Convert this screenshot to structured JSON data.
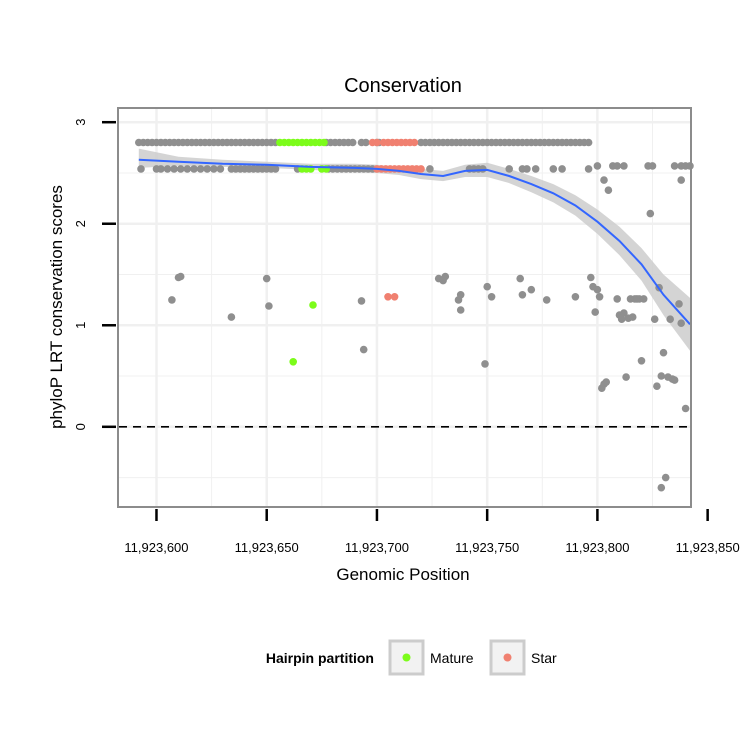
{
  "chart_data": {
    "type": "scatter",
    "title": "Conservation",
    "xlabel": "Genomic Position",
    "ylabel": "phyloP LRT conservation scores",
    "xlim": [
      11923583,
      11923842
    ],
    "ylim": [
      -0.78,
      3.13
    ],
    "x_ticks": [
      11923600,
      11923650,
      11923700,
      11923750,
      11923800,
      11923850
    ],
    "x_tick_labels": [
      "11,923,600",
      "11,923,650",
      "11,923,700",
      "11,923,750",
      "11,923,800",
      "11,923,850"
    ],
    "y_ticks": [
      0,
      1,
      2,
      3
    ],
    "y_tick_labels": [
      "0",
      "1",
      "2",
      "3"
    ],
    "reference_line": {
      "y": 0,
      "style": "dashed"
    },
    "legend": {
      "title": "Hairpin partition",
      "placement": "bottom",
      "entries": [
        {
          "label": "Mature",
          "color": "#7cfc1a"
        },
        {
          "label": "Star",
          "color": "#f08070"
        }
      ]
    },
    "colors": {
      "other": "#8f8f8f",
      "mature": "#7cfc1a",
      "star": "#f08070",
      "smooth": "#3366ff",
      "band": "#cccccc",
      "panel_border": "#8c8c8c",
      "grid": "#f0f0f0"
    },
    "series": [
      {
        "name": "Other",
        "color": "#8f8f8f",
        "points": [
          [
            11923592,
            2.8
          ],
          [
            11923594,
            2.8
          ],
          [
            11923596,
            2.8
          ],
          [
            11923598,
            2.8
          ],
          [
            11923600,
            2.8
          ],
          [
            11923602,
            2.8
          ],
          [
            11923604,
            2.8
          ],
          [
            11923606,
            2.8
          ],
          [
            11923608,
            2.8
          ],
          [
            11923610,
            2.8
          ],
          [
            11923612,
            2.8
          ],
          [
            11923614,
            2.8
          ],
          [
            11923616,
            2.8
          ],
          [
            11923618,
            2.8
          ],
          [
            11923620,
            2.8
          ],
          [
            11923622,
            2.8
          ],
          [
            11923624,
            2.8
          ],
          [
            11923626,
            2.8
          ],
          [
            11923628,
            2.8
          ],
          [
            11923630,
            2.8
          ],
          [
            11923632,
            2.8
          ],
          [
            11923634,
            2.8
          ],
          [
            11923636,
            2.8
          ],
          [
            11923638,
            2.8
          ],
          [
            11923640,
            2.8
          ],
          [
            11923642,
            2.8
          ],
          [
            11923644,
            2.8
          ],
          [
            11923646,
            2.8
          ],
          [
            11923648,
            2.8
          ],
          [
            11923650,
            2.8
          ],
          [
            11923652,
            2.8
          ],
          [
            11923654,
            2.8
          ],
          [
            11923677,
            2.8
          ],
          [
            11923679,
            2.8
          ],
          [
            11923681,
            2.8
          ],
          [
            11923683,
            2.8
          ],
          [
            11923685,
            2.8
          ],
          [
            11923687,
            2.8
          ],
          [
            11923689,
            2.8
          ],
          [
            11923693,
            2.8
          ],
          [
            11923695,
            2.8
          ],
          [
            11923700,
            2.8
          ],
          [
            11923701,
            2.8
          ],
          [
            11923720,
            2.8
          ],
          [
            11923722,
            2.8
          ],
          [
            11923724,
            2.8
          ],
          [
            11923726,
            2.8
          ],
          [
            11923728,
            2.8
          ],
          [
            11923730,
            2.8
          ],
          [
            11923732,
            2.8
          ],
          [
            11923734,
            2.8
          ],
          [
            11923736,
            2.8
          ],
          [
            11923738,
            2.8
          ],
          [
            11923740,
            2.8
          ],
          [
            11923742,
            2.8
          ],
          [
            11923744,
            2.8
          ],
          [
            11923746,
            2.8
          ],
          [
            11923748,
            2.8
          ],
          [
            11923750,
            2.8
          ],
          [
            11923752,
            2.8
          ],
          [
            11923754,
            2.8
          ],
          [
            11923756,
            2.8
          ],
          [
            11923758,
            2.8
          ],
          [
            11923760,
            2.8
          ],
          [
            11923762,
            2.8
          ],
          [
            11923764,
            2.8
          ],
          [
            11923766,
            2.8
          ],
          [
            11923768,
            2.8
          ],
          [
            11923770,
            2.8
          ],
          [
            11923772,
            2.8
          ],
          [
            11923774,
            2.8
          ],
          [
            11923776,
            2.8
          ],
          [
            11923778,
            2.8
          ],
          [
            11923780,
            2.8
          ],
          [
            11923782,
            2.8
          ],
          [
            11923784,
            2.8
          ],
          [
            11923786,
            2.8
          ],
          [
            11923788,
            2.8
          ],
          [
            11923790,
            2.8
          ],
          [
            11923792,
            2.8
          ],
          [
            11923794,
            2.8
          ],
          [
            11923796,
            2.8
          ],
          [
            11923593,
            2.54
          ],
          [
            11923600,
            2.54
          ],
          [
            11923602,
            2.54
          ],
          [
            11923605,
            2.54
          ],
          [
            11923608,
            2.54
          ],
          [
            11923611,
            2.54
          ],
          [
            11923614,
            2.54
          ],
          [
            11923617,
            2.54
          ],
          [
            11923620,
            2.54
          ],
          [
            11923623,
            2.54
          ],
          [
            11923626,
            2.54
          ],
          [
            11923629,
            2.54
          ],
          [
            11923634,
            2.54
          ],
          [
            11923636,
            2.54
          ],
          [
            11923638,
            2.54
          ],
          [
            11923640,
            2.54
          ],
          [
            11923642,
            2.54
          ],
          [
            11923644,
            2.54
          ],
          [
            11923646,
            2.54
          ],
          [
            11923648,
            2.54
          ],
          [
            11923650,
            2.54
          ],
          [
            11923652,
            2.54
          ],
          [
            11923654,
            2.54
          ],
          [
            11923664,
            2.54
          ],
          [
            11923678,
            2.54
          ],
          [
            11923680,
            2.54
          ],
          [
            11923682,
            2.54
          ],
          [
            11923684,
            2.54
          ],
          [
            11923686,
            2.54
          ],
          [
            11923688,
            2.54
          ],
          [
            11923690,
            2.54
          ],
          [
            11923692,
            2.54
          ],
          [
            11923694,
            2.54
          ],
          [
            11923696,
            2.54
          ],
          [
            11923698,
            2.54
          ],
          [
            11923724,
            2.54
          ],
          [
            11923742,
            2.54
          ],
          [
            11923744,
            2.54
          ],
          [
            11923746,
            2.54
          ],
          [
            11923748,
            2.54
          ],
          [
            11923760,
            2.54
          ],
          [
            11923766,
            2.54
          ],
          [
            11923768,
            2.54
          ],
          [
            11923772,
            2.54
          ],
          [
            11923780,
            2.54
          ],
          [
            11923784,
            2.54
          ],
          [
            11923796,
            2.54
          ],
          [
            11923800,
            2.57
          ],
          [
            11923807,
            2.57
          ],
          [
            11923809,
            2.57
          ],
          [
            11923812,
            2.57
          ],
          [
            11923823,
            2.57
          ],
          [
            11923825,
            2.57
          ],
          [
            11923835,
            2.57
          ],
          [
            11923838,
            2.57
          ],
          [
            11923840,
            2.57
          ],
          [
            11923842,
            2.57
          ],
          [
            11923803,
            2.43
          ],
          [
            11923805,
            2.33
          ],
          [
            11923838,
            2.43
          ],
          [
            11923824,
            2.1
          ],
          [
            11923607,
            1.25
          ],
          [
            11923610,
            1.47
          ],
          [
            11923611,
            1.48
          ],
          [
            11923634,
            1.08
          ],
          [
            11923650,
            1.46
          ],
          [
            11923651,
            1.19
          ],
          [
            11923693,
            1.24
          ],
          [
            11923694,
            0.76
          ],
          [
            11923728,
            1.46
          ],
          [
            11923730,
            1.44
          ],
          [
            11923731,
            1.48
          ],
          [
            11923737,
            1.25
          ],
          [
            11923738,
            1.3
          ],
          [
            11923738,
            1.15
          ],
          [
            11923749,
            0.62
          ],
          [
            11923750,
            1.38
          ],
          [
            11923752,
            1.28
          ],
          [
            11923765,
            1.46
          ],
          [
            11923766,
            1.3
          ],
          [
            11923770,
            1.35
          ],
          [
            11923777,
            1.25
          ],
          [
            11923790,
            1.28
          ],
          [
            11923797,
            1.47
          ],
          [
            11923798,
            1.38
          ],
          [
            11923799,
            1.13
          ],
          [
            11923800,
            1.35
          ],
          [
            11923801,
            1.28
          ],
          [
            11923802,
            0.38
          ],
          [
            11923803,
            0.42
          ],
          [
            11923804,
            0.44
          ],
          [
            11923809,
            1.26
          ],
          [
            11923810,
            1.1
          ],
          [
            11923811,
            1.06
          ],
          [
            11923812,
            1.12
          ],
          [
            11923813,
            0.49
          ],
          [
            11923814,
            1.07
          ],
          [
            11923815,
            1.26
          ],
          [
            11923816,
            1.08
          ],
          [
            11923817,
            1.26
          ],
          [
            11923818,
            1.26
          ],
          [
            11923819,
            1.26
          ],
          [
            11923820,
            0.65
          ],
          [
            11923821,
            1.26
          ],
          [
            11923826,
            1.06
          ],
          [
            11923827,
            0.4
          ],
          [
            11923828,
            1.37
          ],
          [
            11923829,
            0.5
          ],
          [
            11923829,
            -0.6
          ],
          [
            11923830,
            0.73
          ],
          [
            11923831,
            -0.5
          ],
          [
            11923832,
            0.49
          ],
          [
            11923833,
            1.06
          ],
          [
            11923834,
            0.47
          ],
          [
            11923835,
            0.46
          ],
          [
            11923837,
            1.21
          ],
          [
            11923838,
            1.02
          ],
          [
            11923840,
            0.18
          ]
        ]
      },
      {
        "name": "Mature",
        "color": "#7cfc1a",
        "points": [
          [
            11923656,
            2.8
          ],
          [
            11923658,
            2.8
          ],
          [
            11923660,
            2.8
          ],
          [
            11923662,
            2.8
          ],
          [
            11923664,
            2.8
          ],
          [
            11923666,
            2.8
          ],
          [
            11923668,
            2.8
          ],
          [
            11923670,
            2.8
          ],
          [
            11923672,
            2.8
          ],
          [
            11923674,
            2.8
          ],
          [
            11923676,
            2.8
          ],
          [
            11923666,
            2.54
          ],
          [
            11923668,
            2.54
          ],
          [
            11923670,
            2.54
          ],
          [
            11923675,
            2.54
          ],
          [
            11923677,
            2.54
          ],
          [
            11923662,
            0.64
          ],
          [
            11923671,
            1.2
          ]
        ]
      },
      {
        "name": "Star",
        "color": "#f08070",
        "points": [
          [
            11923698,
            2.8
          ],
          [
            11923700,
            2.8
          ],
          [
            11923703,
            2.8
          ],
          [
            11923705,
            2.8
          ],
          [
            11923707,
            2.8
          ],
          [
            11923709,
            2.8
          ],
          [
            11923711,
            2.8
          ],
          [
            11923713,
            2.8
          ],
          [
            11923715,
            2.8
          ],
          [
            11923717,
            2.8
          ],
          [
            11923700,
            2.54
          ],
          [
            11923702,
            2.54
          ],
          [
            11923704,
            2.54
          ],
          [
            11923706,
            2.54
          ],
          [
            11923708,
            2.54
          ],
          [
            11923710,
            2.54
          ],
          [
            11923712,
            2.54
          ],
          [
            11923714,
            2.54
          ],
          [
            11923716,
            2.54
          ],
          [
            11923718,
            2.54
          ],
          [
            11923720,
            2.54
          ],
          [
            11923705,
            1.28
          ],
          [
            11923708,
            1.28
          ]
        ]
      }
    ],
    "smooth": {
      "name": "loess",
      "x": [
        11923592,
        11923610,
        11923630,
        11923650,
        11923670,
        11923690,
        11923700,
        11923710,
        11923720,
        11923730,
        11923740,
        11923750,
        11923760,
        11923770,
        11923780,
        11923790,
        11923800,
        11923810,
        11923820,
        11923830,
        11923842
      ],
      "y": [
        2.63,
        2.61,
        2.59,
        2.58,
        2.56,
        2.55,
        2.54,
        2.52,
        2.49,
        2.47,
        2.52,
        2.53,
        2.47,
        2.39,
        2.3,
        2.18,
        2.02,
        1.83,
        1.6,
        1.3,
        1.01
      ],
      "lower": [
        2.55,
        2.57,
        2.56,
        2.55,
        2.53,
        2.51,
        2.5,
        2.48,
        2.44,
        2.42,
        2.46,
        2.46,
        2.4,
        2.31,
        2.21,
        2.08,
        1.9,
        1.69,
        1.44,
        1.1,
        0.75
      ],
      "upper": [
        2.74,
        2.66,
        2.63,
        2.61,
        2.59,
        2.59,
        2.58,
        2.56,
        2.54,
        2.52,
        2.58,
        2.6,
        2.54,
        2.47,
        2.39,
        2.28,
        2.14,
        1.97,
        1.76,
        1.5,
        1.27
      ]
    }
  }
}
